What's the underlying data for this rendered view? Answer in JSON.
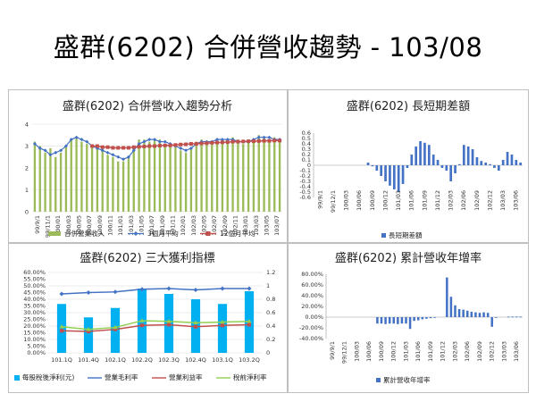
{
  "page": {
    "title": "盛群(6202) 合併營收趨勢 - 103/08"
  },
  "colors": {
    "green": "#9bbb59",
    "blue": "#4472c4",
    "red": "#c0504d",
    "cyan": "#00b0f0",
    "lime": "#92d050",
    "grid": "#d9d9d9"
  },
  "chart_data": [
    {
      "id": "revenue",
      "type": "bar",
      "title": "盛群(6202) 合併營收入趨勢分析",
      "ylim": [
        0,
        4
      ],
      "yticks": [
        "0",
        "1",
        "2",
        "3",
        "4"
      ],
      "x_ticks": [
        "99/9/1",
        "99/11/1",
        "100/01",
        "100/03",
        "100/05",
        "100/07",
        "100/09",
        "100/11",
        "101/01",
        "101/03",
        "101/05",
        "101/07",
        "101/09",
        "101/11",
        "102/01",
        "102/03",
        "102/05",
        "102/07",
        "102/09",
        "102/11",
        "103/01",
        "103/03",
        "103/05",
        "103/07"
      ],
      "series": [
        {
          "name": "合併營業收入",
          "kind": "bar",
          "color": "#9bbb59",
          "values": [
            3.2,
            3.0,
            2.7,
            2.9,
            2.5,
            2.7,
            3.0,
            3.3,
            3.4,
            3.2,
            3.1,
            3.0,
            2.9,
            2.9,
            2.6,
            2.5,
            2.3,
            2.3,
            2.5,
            2.9,
            3.3,
            3.3,
            3.2,
            3.3,
            3.3,
            3.1,
            3.1,
            3.1,
            2.8,
            2.7,
            2.9,
            3.2,
            3.3,
            3.2,
            3.1,
            3.3,
            3.3,
            3.2,
            3.4,
            3.3,
            3.1,
            3.2,
            3.3,
            3.5,
            3.4,
            3.3,
            3.4,
            3.3
          ]
        },
        {
          "name": "3個月平均",
          "kind": "line",
          "color": "#4472c4",
          "values": [
            3.1,
            2.9,
            2.8,
            2.6,
            2.7,
            2.8,
            3.0,
            3.3,
            3.4,
            3.3,
            3.2,
            3.0,
            2.9,
            2.8,
            2.7,
            2.6,
            2.5,
            2.4,
            2.5,
            2.8,
            3.1,
            3.2,
            3.3,
            3.3,
            3.2,
            3.2,
            3.1,
            3.0,
            2.9,
            2.8,
            2.9,
            3.1,
            3.2,
            3.2,
            3.2,
            3.3,
            3.3,
            3.3,
            3.3,
            3.2,
            3.2,
            3.2,
            3.3,
            3.4,
            3.4,
            3.4,
            3.3,
            3.3
          ]
        },
        {
          "name": "12個月平均",
          "kind": "line",
          "color": "#c0504d",
          "start_index": 11,
          "values": [
            3.0,
            3.0,
            2.95,
            2.95,
            2.92,
            2.92,
            2.92,
            2.92,
            2.95,
            2.97,
            2.98,
            3.0,
            3.0,
            3.02,
            3.03,
            3.03,
            3.05,
            3.07,
            3.08,
            3.1,
            3.1,
            3.12,
            3.13,
            3.15,
            3.16,
            3.17,
            3.18,
            3.2,
            3.2,
            3.21,
            3.22,
            3.22,
            3.23,
            3.24,
            3.24,
            3.25,
            3.25
          ]
        }
      ]
    },
    {
      "id": "diff",
      "type": "bar",
      "title": "盛群(6202) 長短期差額",
      "ylim": [
        -0.6,
        0.6
      ],
      "yticks": [
        "0.6",
        "0.5",
        "0.4",
        "0.3",
        "0.2",
        "0.1",
        "0",
        "-0.1",
        "-0.2",
        "-0.3",
        "-0.4",
        "-0.5",
        "-0.6"
      ],
      "x_ticks": [
        "99/9/1",
        "99/12/1",
        "100/03",
        "100/06",
        "100/09",
        "100/12",
        "101/03",
        "101/06",
        "101/09",
        "101/12",
        "102/03",
        "102/06",
        "102/09",
        "102/12",
        "103/03",
        "103/06"
      ],
      "series": [
        {
          "name": "長短期差額",
          "color": "#4472c4",
          "values": [
            0,
            0,
            0,
            0,
            0,
            0,
            0,
            0,
            0,
            0,
            0,
            0,
            0.05,
            -0.02,
            -0.1,
            -0.2,
            -0.3,
            -0.38,
            -0.45,
            -0.5,
            -0.35,
            -0.05,
            0.2,
            0.35,
            0.45,
            0.42,
            0.38,
            0.2,
            0.1,
            -0.05,
            -0.1,
            -0.3,
            -0.15,
            0.02,
            0.38,
            0.35,
            0.3,
            0.15,
            0.08,
            0.05,
            0.02,
            -0.05,
            -0.1,
            0.1,
            0.25,
            0.2,
            0.1,
            0.05
          ]
        }
      ]
    },
    {
      "id": "profit",
      "type": "bar",
      "title": "盛群(6202) 三大獲利指標",
      "categories": [
        "101.1Q",
        "101.4Q",
        "102.1Q",
        "102.2Q",
        "102.3Q",
        "102.4Q",
        "103.1Q",
        "103.2Q"
      ],
      "ylim_left": [
        0,
        60
      ],
      "ylim_right": [
        0,
        1.2
      ],
      "yticks_left": [
        "0.00%",
        "5.00%",
        "10.00%",
        "15.00%",
        "20.00%",
        "25.00%",
        "30.00%",
        "35.00%",
        "40.00%",
        "45.00%",
        "50.00%",
        "55.00%",
        "60.00%"
      ],
      "yticks_right": [
        "0",
        "0.2",
        "0.4",
        "0.6",
        "0.8",
        "1",
        "1.2"
      ],
      "series": [
        {
          "name": "每股稅後淨利(元)",
          "kind": "bar",
          "axis": "right",
          "color": "#00b0f0",
          "values": [
            0.73,
            0.53,
            0.67,
            0.96,
            0.88,
            0.8,
            0.73,
            0.92
          ]
        },
        {
          "name": "營業毛利率",
          "kind": "line",
          "axis": "left",
          "color": "#4472c4",
          "values": [
            44.0,
            45.0,
            45.5,
            47.5,
            48.0,
            47.0,
            48.0,
            48.0
          ]
        },
        {
          "name": "營業利益率",
          "kind": "line",
          "axis": "left",
          "color": "#c0504d",
          "values": [
            16.5,
            16.0,
            17.5,
            20.5,
            21.0,
            19.5,
            20.5,
            21.0
          ]
        },
        {
          "name": "稅前淨利率",
          "kind": "line",
          "axis": "left",
          "color": "#92d050",
          "values": [
            19.5,
            17.5,
            19.0,
            24.0,
            23.5,
            22.5,
            23.0,
            23.5
          ]
        }
      ]
    },
    {
      "id": "yoy",
      "type": "bar",
      "title": "盛群(6202) 累計營收年增率",
      "ylim": [
        -40,
        80
      ],
      "yticks": [
        "80.00%",
        "60.00%",
        "40.00%",
        "20.00%",
        "0.00%",
        "-20.00%",
        "-40.00%"
      ],
      "x_ticks": [
        "99/9/1",
        "99/12/1",
        "100/03",
        "100/06",
        "100/09",
        "100/12",
        "101/03",
        "101/06",
        "101/09",
        "101/12",
        "102/03",
        "102/06",
        "102/09",
        "102/12",
        "103/03",
        "103/06"
      ],
      "series": [
        {
          "name": "累計營收年增率",
          "color": "#4472c4",
          "values": [
            0,
            0,
            0,
            0,
            0,
            0,
            0,
            0,
            0,
            0,
            0,
            0,
            -12,
            -12,
            -13,
            -12,
            -12,
            -13,
            -12,
            -12,
            -22,
            -7,
            -6,
            -4,
            -3,
            -2,
            -1,
            0,
            0,
            74,
            38,
            22,
            15,
            14,
            12,
            10,
            9,
            8,
            9,
            8,
            -18,
            -1,
            0,
            0,
            1,
            1,
            1,
            1
          ]
        }
      ]
    }
  ]
}
